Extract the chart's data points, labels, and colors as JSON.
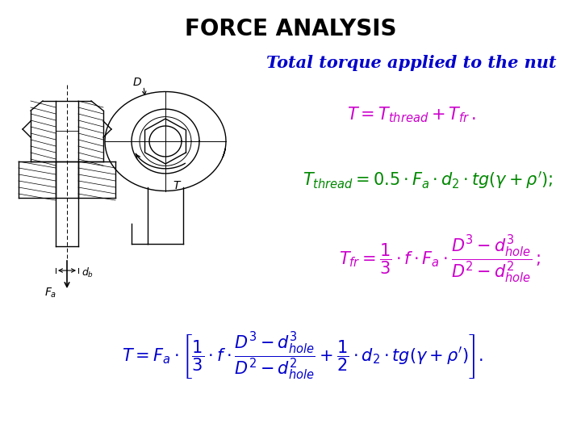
{
  "title": "FORCE ANALYSIS",
  "title_color": "#000000",
  "title_fontsize": 20,
  "subtitle": "Total torque applied to the nut",
  "subtitle_color": "#0000CC",
  "subtitle_fontsize": 15,
  "bg_color": "#FFFFFF",
  "eq1_color": "#CC00CC",
  "eq2_color": "#008800",
  "eq3_color": "#CC00CC",
  "eq4_color": "#0000CC",
  "lc": "black",
  "lw": 1.0
}
